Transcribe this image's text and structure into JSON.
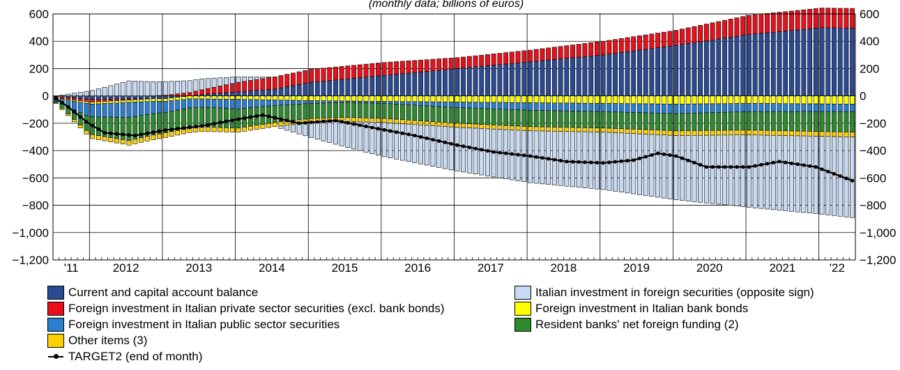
{
  "chart_data": {
    "type": "bar",
    "subtitle": "(monthly data; billions of euros)",
    "ylim": [
      -1200,
      600
    ],
    "y_ticks": [
      600,
      400,
      200,
      0,
      -200,
      -400,
      -600,
      -800,
      -1000,
      -1200
    ],
    "y_tick_labels": [
      "600",
      "400",
      "200",
      "0",
      "−200",
      "−400",
      "−600",
      "−800",
      "−1,000",
      "−1,200"
    ],
    "x_start": "2011-07",
    "x_end": "2022-06",
    "x_labels": [
      "'11",
      "2012",
      "2013",
      "2014",
      "2015",
      "2016",
      "2017",
      "2018",
      "2019",
      "2020",
      "2021",
      "'22"
    ],
    "grid": true,
    "legend_position": "bottom",
    "series": [
      {
        "name": "Current and capital account balance",
        "color": "#2a4a92",
        "key_values": [
          [
            "2011-07",
            -5
          ],
          [
            "2012-01",
            -25
          ],
          [
            "2013-01",
            -20
          ],
          [
            "2013-07",
            10
          ],
          [
            "2014-07",
            50
          ],
          [
            "2015-01",
            100
          ],
          [
            "2016-01",
            150
          ],
          [
            "2017-01",
            200
          ],
          [
            "2018-01",
            250
          ],
          [
            "2019-01",
            300
          ],
          [
            "2020-01",
            370
          ],
          [
            "2021-01",
            450
          ],
          [
            "2022-01",
            500
          ],
          [
            "2022-06",
            495
          ]
        ]
      },
      {
        "name": "Foreign investment in Italian private sector securities (excl. bank bonds)",
        "color": "#e8101a",
        "key_values": [
          [
            "2011-07",
            -10
          ],
          [
            "2012-01",
            -20
          ],
          [
            "2013-01",
            5
          ],
          [
            "2013-07",
            35
          ],
          [
            "2014-01",
            70
          ],
          [
            "2014-07",
            90
          ],
          [
            "2015-01",
            95
          ],
          [
            "2016-01",
            95
          ],
          [
            "2017-01",
            80
          ],
          [
            "2018-01",
            85
          ],
          [
            "2019-01",
            100
          ],
          [
            "2020-01",
            110
          ],
          [
            "2021-01",
            140
          ],
          [
            "2022-06",
            145
          ]
        ]
      },
      {
        "name": "Foreign investment in Italian bank bonds",
        "color": "#ffff00",
        "key_values": [
          [
            "2011-07",
            -5
          ],
          [
            "2012-01",
            -15
          ],
          [
            "2013-01",
            -20
          ],
          [
            "2014-01",
            -25
          ],
          [
            "2015-01",
            -35
          ],
          [
            "2016-01",
            -40
          ],
          [
            "2017-01",
            -45
          ],
          [
            "2018-01",
            -50
          ],
          [
            "2019-01",
            -55
          ],
          [
            "2020-01",
            -60
          ],
          [
            "2021-01",
            -55
          ],
          [
            "2022-06",
            -60
          ]
        ]
      },
      {
        "name": "Foreign investment in Italian public sector securities",
        "color": "#2a80d0",
        "key_values": [
          [
            "2011-07",
            -20
          ],
          [
            "2011-12",
            -90
          ],
          [
            "2012-07",
            -110
          ],
          [
            "2013-01",
            -80
          ],
          [
            "2013-07",
            -60
          ],
          [
            "2014-01",
            -70
          ],
          [
            "2014-07",
            -40
          ],
          [
            "2015-01",
            -20
          ],
          [
            "2015-07",
            -10
          ],
          [
            "2016-01",
            -15
          ],
          [
            "2017-01",
            -40
          ],
          [
            "2018-01",
            -55
          ],
          [
            "2019-01",
            -60
          ],
          [
            "2020-01",
            -70
          ],
          [
            "2021-01",
            -60
          ],
          [
            "2022-06",
            -55
          ]
        ]
      },
      {
        "name": "Resident banks' net foreign funding (2)",
        "color": "#2e8a2e",
        "key_values": [
          [
            "2011-07",
            -10
          ],
          [
            "2012-01",
            -130
          ],
          [
            "2012-07",
            -170
          ],
          [
            "2013-01",
            -150
          ],
          [
            "2014-01",
            -140
          ],
          [
            "2015-01",
            -110
          ],
          [
            "2016-01",
            -110
          ],
          [
            "2017-01",
            -115
          ],
          [
            "2018-01",
            -120
          ],
          [
            "2019-01",
            -120
          ],
          [
            "2020-01",
            -125
          ],
          [
            "2021-01",
            -135
          ],
          [
            "2022-06",
            -150
          ]
        ]
      },
      {
        "name": "Other items (3)",
        "color": "#ffd000",
        "key_values": [
          [
            "2011-07",
            -5
          ],
          [
            "2012-01",
            -30
          ],
          [
            "2013-01",
            -35
          ],
          [
            "2014-01",
            -30
          ],
          [
            "2015-01",
            -30
          ],
          [
            "2016-01",
            -30
          ],
          [
            "2017-01",
            -30
          ],
          [
            "2018-01",
            -30
          ],
          [
            "2019-01",
            -30
          ],
          [
            "2020-01",
            -35
          ],
          [
            "2021-01",
            -35
          ],
          [
            "2022-06",
            -35
          ]
        ]
      },
      {
        "name": "Italian investment in foreign securities (opposite sign)",
        "color": "#c6daf3",
        "key_values": [
          [
            "2011-07",
            0
          ],
          [
            "2011-10",
            20
          ],
          [
            "2012-01",
            40
          ],
          [
            "2012-07",
            110
          ],
          [
            "2013-01",
            100
          ],
          [
            "2013-07",
            80
          ],
          [
            "2014-01",
            40
          ],
          [
            "2014-07",
            0
          ],
          [
            "2015-01",
            -110
          ],
          [
            "2015-07",
            -190
          ],
          [
            "2016-01",
            -250
          ],
          [
            "2017-01",
            -320
          ],
          [
            "2018-01",
            -380
          ],
          [
            "2019-01",
            -420
          ],
          [
            "2020-01",
            -470
          ],
          [
            "2021-01",
            -530
          ],
          [
            "2022-01",
            -570
          ],
          [
            "2022-06",
            -590
          ]
        ]
      },
      {
        "name": "TARGET2 (end of month)",
        "color": "#000000",
        "type": "line",
        "key_values": [
          [
            "2011-07",
            -20
          ],
          [
            "2011-09",
            -80
          ],
          [
            "2011-12",
            -190
          ],
          [
            "2012-03",
            -270
          ],
          [
            "2012-08",
            -290
          ],
          [
            "2013-01",
            -250
          ],
          [
            "2013-07",
            -220
          ],
          [
            "2014-01",
            -170
          ],
          [
            "2014-05",
            -140
          ],
          [
            "2014-11",
            -200
          ],
          [
            "2015-05",
            -180
          ],
          [
            "2015-12",
            -240
          ],
          [
            "2016-06",
            -290
          ],
          [
            "2017-01",
            -360
          ],
          [
            "2017-07",
            -410
          ],
          [
            "2018-01",
            -440
          ],
          [
            "2018-07",
            -480
          ],
          [
            "2019-01",
            -490
          ],
          [
            "2019-06",
            -470
          ],
          [
            "2019-10",
            -420
          ],
          [
            "2020-01",
            -440
          ],
          [
            "2020-06",
            -520
          ],
          [
            "2021-01",
            -520
          ],
          [
            "2021-06",
            -480
          ],
          [
            "2021-12",
            -520
          ],
          [
            "2022-03",
            -570
          ],
          [
            "2022-06",
            -620
          ]
        ]
      }
    ]
  }
}
